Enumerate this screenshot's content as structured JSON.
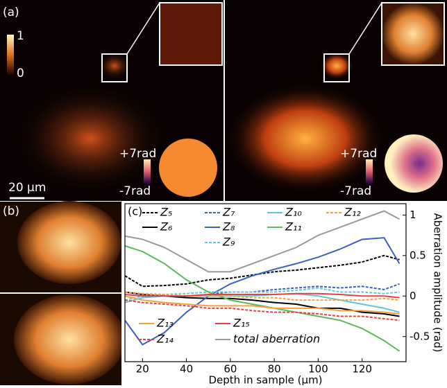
{
  "figure": {
    "panel_a": {
      "label": "(a)",
      "colorbar_max": "1",
      "colorbar_min": "0",
      "scale_bar": "20 μm",
      "phase_max_left": "+7rad",
      "phase_min_left": "-7rad",
      "phase_max_right": "+7rad",
      "phase_min_right": "-7rad"
    },
    "panel_b": {
      "label": "(b)"
    }
  },
  "chart_data": {
    "type": "line",
    "panel_label": "(c)",
    "x_label": "Depth in sample (μm)",
    "y_label": "Aberration amplitude (rad)",
    "x": [
      12,
      20,
      30,
      40,
      50,
      60,
      70,
      80,
      90,
      100,
      110,
      120,
      130,
      137
    ],
    "xlim": [
      12,
      140
    ],
    "xticks": [
      20,
      40,
      60,
      80,
      100,
      120
    ],
    "ylim": [
      -0.81,
      1.14
    ],
    "yticks": [
      1,
      0.5,
      0,
      -0.5
    ],
    "y_axis_side": "right",
    "grid": false,
    "series": [
      {
        "name": "Z₅",
        "color": "#000000",
        "style": "dashed",
        "values": [
          0.25,
          0.12,
          0.13,
          0.15,
          0.2,
          0.22,
          0.26,
          0.3,
          0.32,
          0.35,
          0.38,
          0.42,
          0.5,
          0.45
        ]
      },
      {
        "name": "Z₆",
        "color": "#000000",
        "style": "solid",
        "values": [
          0.05,
          0.02,
          0,
          -0.02,
          -0.03,
          -0.03,
          -0.05,
          -0.08,
          -0.1,
          -0.15,
          -0.15,
          -0.2,
          -0.22,
          -0.25
        ]
      },
      {
        "name": "Z₇",
        "color": "#3a5fc0",
        "style": "dashed",
        "values": [
          0.05,
          0.02,
          0,
          0,
          0.02,
          0.05,
          0.05,
          0.08,
          0.1,
          0.12,
          0.1,
          0.12,
          0.08,
          0.15
        ]
      },
      {
        "name": "Z₈",
        "color": "#3a5fc0",
        "style": "solid",
        "values": [
          -0.3,
          -0.6,
          -0.45,
          -0.2,
          0,
          0.15,
          0.25,
          0.33,
          0.4,
          0.48,
          0.58,
          0.7,
          0.72,
          0.4
        ]
      },
      {
        "name": "Z₉",
        "color": "#5bc8e0",
        "style": "dashed",
        "values": [
          -0.05,
          0,
          0.02,
          0.03,
          0.05,
          0.05,
          0.05,
          0.05,
          0.07,
          0.1,
          0.05,
          0.05,
          0.03,
          0.05
        ]
      },
      {
        "name": "Z₁₀",
        "color": "#5bc8e0",
        "style": "solid",
        "values": [
          -0.08,
          -0.02,
          0,
          0,
          0,
          0,
          0,
          0.02,
          0.03,
          0,
          -0.05,
          -0.1,
          -0.15,
          -0.2
        ]
      },
      {
        "name": "Z₁₁",
        "color": "#5cb85c",
        "style": "solid",
        "values": [
          0.62,
          0.55,
          0.4,
          0.2,
          0.05,
          -0.05,
          -0.1,
          -0.15,
          -0.2,
          -0.25,
          -0.3,
          -0.4,
          -0.55,
          -0.68
        ]
      },
      {
        "name": "Z₁₂",
        "color": "#f5a040",
        "style": "dashed",
        "values": [
          0.05,
          0.03,
          0.02,
          0,
          0,
          0,
          -0.02,
          -0.02,
          -0.05,
          -0.05,
          -0.05,
          -0.05,
          -0.03,
          -0.05
        ]
      },
      {
        "name": "Z₁₃",
        "color": "#f5a040",
        "style": "solid",
        "values": [
          0,
          -0.05,
          -0.08,
          -0.1,
          -0.12,
          -0.12,
          -0.12,
          -0.15,
          -0.15,
          -0.15,
          -0.18,
          -0.18,
          -0.2,
          -0.22
        ]
      },
      {
        "name": "Z₁₄",
        "color": "#e84040",
        "style": "dashed",
        "values": [
          -0.05,
          -0.08,
          -0.1,
          -0.12,
          -0.15,
          -0.15,
          -0.18,
          -0.2,
          -0.2,
          -0.22,
          -0.25,
          -0.25,
          -0.28,
          -0.3
        ]
      },
      {
        "name": "Z₁₅",
        "color": "#e84040",
        "style": "solid",
        "values": [
          0.02,
          0,
          0,
          0,
          0.02,
          0.02,
          0.02,
          0.02,
          0.03,
          0.03,
          0.02,
          0,
          0,
          -0.02
        ]
      },
      {
        "name": "total aberration",
        "color": "#999999",
        "style": "solid",
        "values": [
          0.74,
          0.7,
          0.6,
          0.45,
          0.3,
          0.3,
          0.4,
          0.5,
          0.6,
          0.75,
          0.85,
          0.95,
          1.05,
          0.95
        ]
      }
    ]
  }
}
